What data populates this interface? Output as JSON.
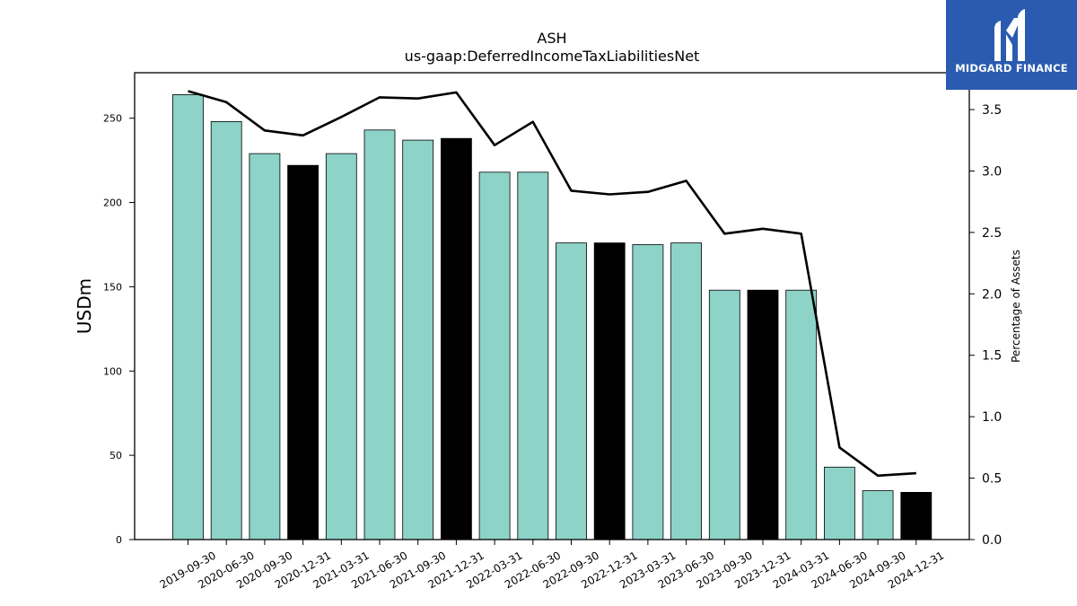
{
  "chart_data": {
    "type": "bar",
    "title": "ASH",
    "subtitle": "us-gaap:DeferredIncomeTaxLiabilitiesNet",
    "ylabel": "USDm",
    "y2label": "Percentage of Assets",
    "ylim": [
      0,
      277
    ],
    "y2lim": [
      0,
      3.8
    ],
    "yticks": [
      0,
      50,
      100,
      150,
      200,
      250
    ],
    "y2ticks": [
      "0.0",
      "0.5",
      "1.0",
      "1.5",
      "2.0",
      "2.5",
      "3.0",
      "3.5"
    ],
    "categories": [
      "2019-09-30",
      "2020-06-30",
      "2020-09-30",
      "2020-12-31",
      "2021-03-31",
      "2021-06-30",
      "2021-09-30",
      "2021-12-31",
      "2022-03-31",
      "2022-06-30",
      "2022-09-30",
      "2022-12-31",
      "2023-03-31",
      "2023-06-30",
      "2023-09-30",
      "2023-12-31",
      "2024-03-31",
      "2024-06-30",
      "2024-09-30",
      "2024-12-31"
    ],
    "series": [
      {
        "type": "bar",
        "axis": "left",
        "values": [
          264,
          248,
          229,
          222,
          229,
          243,
          237,
          238,
          218,
          218,
          176,
          176,
          175,
          176,
          148,
          148,
          148,
          43,
          29,
          28
        ],
        "highlight": [
          false,
          false,
          false,
          true,
          false,
          false,
          false,
          true,
          false,
          false,
          false,
          true,
          false,
          false,
          false,
          true,
          false,
          false,
          false,
          true
        ]
      },
      {
        "type": "line",
        "axis": "right",
        "values": [
          3.65,
          3.56,
          3.33,
          3.29,
          3.44,
          3.6,
          3.59,
          3.64,
          3.21,
          3.4,
          2.84,
          2.81,
          2.83,
          2.92,
          2.49,
          2.53,
          2.49,
          0.75,
          0.52,
          0.54
        ]
      }
    ],
    "colors": {
      "bar": "#8dd3c7",
      "highlight": "#000000",
      "line": "#000000"
    },
    "grid": false
  },
  "logo": {
    "text": "MIDGARD FINANCE",
    "background": "#2a5bb0",
    "icon": "midgard-m-logo-icon"
  }
}
